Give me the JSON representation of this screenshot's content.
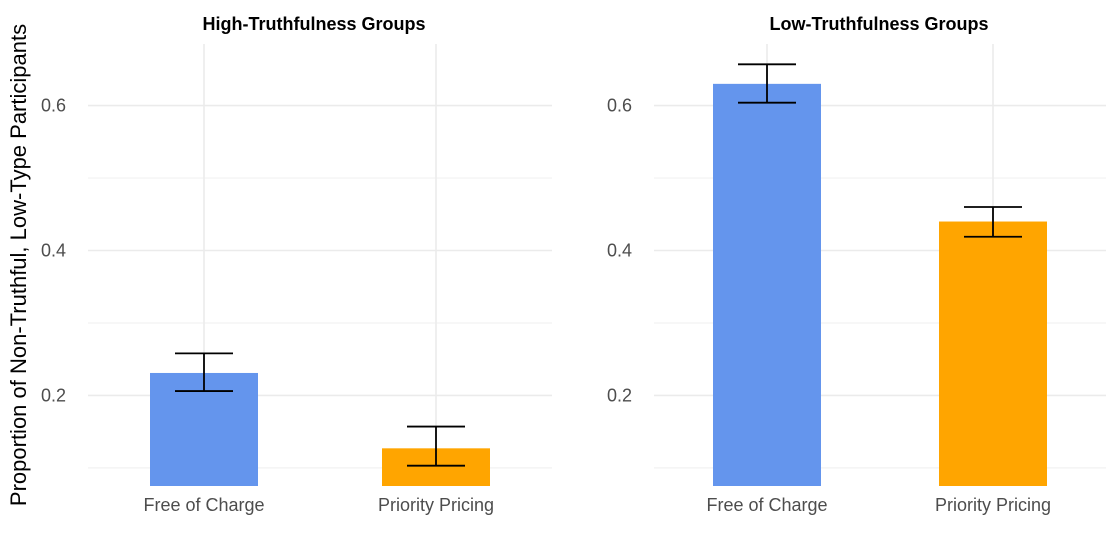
{
  "chart_data": {
    "type": "bar",
    "ylabel": "Proportion of Non-Truthful, Low-Type Participants",
    "categories": [
      "Free of Charge",
      "Priority Pricing"
    ],
    "colors": {
      "Free of Charge": "#6495ED",
      "Priority Pricing": "#FFA500"
    },
    "panels": [
      {
        "title": "High-Truthfulness Groups",
        "ylim": [
          0.075,
          0.685
        ],
        "yticks": [
          0.2,
          0.4,
          0.6
        ],
        "ytick_labels": [
          "0.2",
          "0.4",
          "0.6"
        ],
        "values": [
          0.231,
          0.127
        ],
        "error_low": [
          0.206,
          0.103
        ],
        "error_high": [
          0.258,
          0.157
        ]
      },
      {
        "title": "Low-Truthfulness Groups",
        "ylim": [
          0.075,
          0.685
        ],
        "yticks": [
          0.2,
          0.4,
          0.6
        ],
        "ytick_labels": [
          "0.2",
          "0.4",
          "0.6"
        ],
        "values": [
          0.63,
          0.44
        ],
        "error_low": [
          0.604,
          0.419
        ],
        "error_high": [
          0.657,
          0.46
        ]
      }
    ],
    "grid": true
  }
}
